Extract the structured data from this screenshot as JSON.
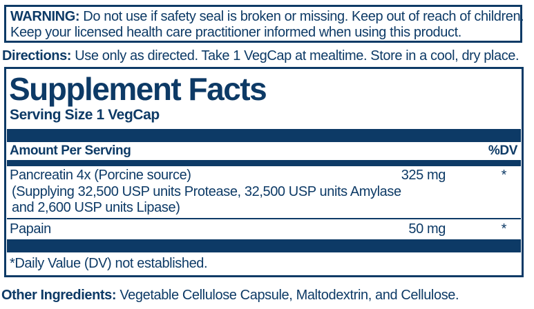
{
  "colors": {
    "navy": "#0d3a66",
    "background": "#ffffff"
  },
  "warning": {
    "label": "WARNING:",
    "line1": "Do not use if safety seal is broken or missing. Keep out of reach of children.",
    "line2": "Keep your licensed health care practitioner informed when using this product."
  },
  "directions": {
    "label": "Directions:",
    "text": "Use only as directed. Take 1 VegCap at mealtime. Store in a cool, dry place."
  },
  "supplement_facts": {
    "title": "Supplement Facts",
    "serving_size": "Serving Size 1 VegCap",
    "header": {
      "amount_per_serving": "Amount Per Serving",
      "percent_dv": "%DV"
    },
    "rows": [
      {
        "name": "Pancreatin 4x (Porcine source)",
        "amount": "325 mg",
        "dv": "*",
        "detail_line1": "(Supplying 32,500 USP units Protease, 32,500 USP units Amylase",
        "detail_line2": "and 2,600 USP units Lipase)"
      },
      {
        "name": "Papain",
        "amount": "50 mg",
        "dv": "*"
      }
    ],
    "footnote": "*Daily Value (DV) not established."
  },
  "other_ingredients": {
    "label": "Other Ingredients:",
    "text": "Vegetable Cellulose Capsule, Maltodextrin, and Cellulose."
  }
}
